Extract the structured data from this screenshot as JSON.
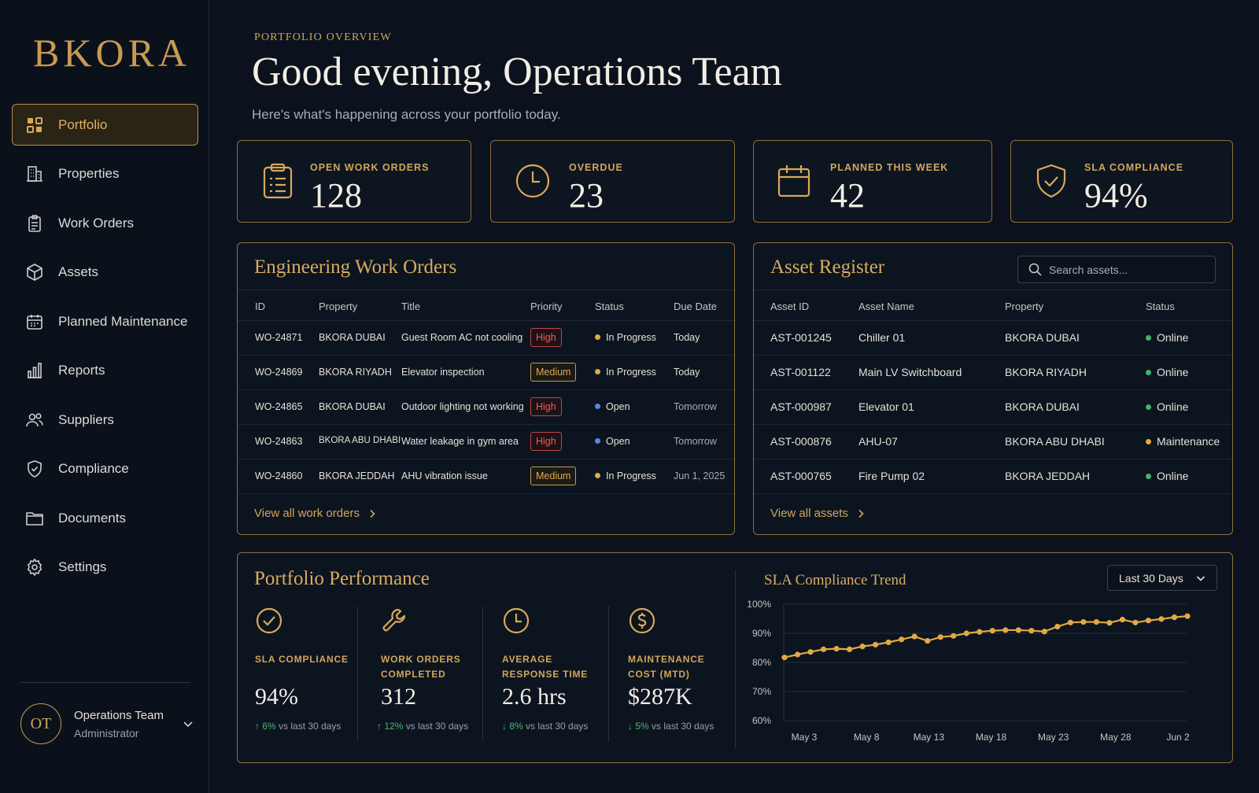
{
  "brand": {
    "logo": "BKORA"
  },
  "sidebar": {
    "items": [
      {
        "label": "Portfolio",
        "icon": "grid-icon",
        "active": true
      },
      {
        "label": "Properties",
        "icon": "building-icon"
      },
      {
        "label": "Work Orders",
        "icon": "clipboard-icon"
      },
      {
        "label": "Assets",
        "icon": "cube-icon"
      },
      {
        "label": "Planned Maintenance",
        "icon": "calendar-icon"
      },
      {
        "label": "Reports",
        "icon": "bar-chart-icon"
      },
      {
        "label": "Suppliers",
        "icon": "users-icon"
      },
      {
        "label": "Compliance",
        "icon": "shield-check-icon"
      },
      {
        "label": "Documents",
        "icon": "folder-icon"
      },
      {
        "label": "Settings",
        "icon": "gear-icon"
      }
    ],
    "user": {
      "initials": "OT",
      "name": "Operations Team",
      "role": "Administrator"
    }
  },
  "header": {
    "eyebrow": "PORTFOLIO OVERVIEW",
    "greeting": "Good evening, Operations Team",
    "subtitle": "Here's what's happening across your portfolio today."
  },
  "stats": [
    {
      "label": "OPEN WORK ORDERS",
      "value": "128",
      "icon": "clipboard-list-icon"
    },
    {
      "label": "OVERDUE",
      "value": "23",
      "icon": "clock-icon"
    },
    {
      "label": "PLANNED THIS WEEK",
      "value": "42",
      "icon": "calendar-icon"
    },
    {
      "label": "SLA COMPLIANCE",
      "value": "94%",
      "icon": "shield-check-icon"
    }
  ],
  "work_orders": {
    "title": "Engineering Work Orders",
    "columns": [
      "ID",
      "Property",
      "Title",
      "Priority",
      "Status",
      "Due Date"
    ],
    "rows": [
      {
        "id": "WO-24871",
        "property": "BKORA DUBAI",
        "title": "Guest Room AC not cooling",
        "priority": "High",
        "status": "In Progress",
        "due": "Today"
      },
      {
        "id": "WO-24869",
        "property": "BKORA RIYADH",
        "title": "Elevator inspection",
        "priority": "Medium",
        "status": "In Progress",
        "due": "Today"
      },
      {
        "id": "WO-24865",
        "property": "BKORA DUBAI",
        "title": "Outdoor lighting not working",
        "priority": "High",
        "status": "Open",
        "due": "Tomorrow"
      },
      {
        "id": "WO-24863",
        "property": "BKORA ABU DHABI",
        "title": "Water leakage in gym area",
        "priority": "High",
        "status": "Open",
        "due": "Tomorrow"
      },
      {
        "id": "WO-24860",
        "property": "BKORA JEDDAH",
        "title": "AHU vibration issue",
        "priority": "Medium",
        "status": "In Progress",
        "due": "Jun 1, 2025"
      }
    ],
    "link": "View all work orders"
  },
  "assets": {
    "title": "Asset Register",
    "search_placeholder": "Search assets...",
    "columns": [
      "Asset ID",
      "Asset Name",
      "Property",
      "Status"
    ],
    "rows": [
      {
        "id": "AST-001245",
        "name": "Chiller 01",
        "property": "BKORA DUBAI",
        "status": "Online"
      },
      {
        "id": "AST-001122",
        "name": "Main LV Switchboard",
        "property": "BKORA RIYADH",
        "status": "Online"
      },
      {
        "id": "AST-000987",
        "name": "Elevator 01",
        "property": "BKORA DUBAI",
        "status": "Online"
      },
      {
        "id": "AST-000876",
        "name": "AHU-07",
        "property": "BKORA ABU DHABI",
        "status": "Maintenance"
      },
      {
        "id": "AST-000765",
        "name": "Fire Pump 02",
        "property": "BKORA JEDDAH",
        "status": "Online"
      }
    ],
    "link": "View all assets"
  },
  "performance": {
    "title": "Portfolio Performance",
    "kpis": [
      {
        "label": "SLA COMPLIANCE",
        "value": "94%",
        "delta": "6%",
        "delta_suffix": "vs last 30 days",
        "direction": "up",
        "icon": "check-circle-icon"
      },
      {
        "label": "WORK ORDERS COMPLETED",
        "value": "312",
        "delta": "12%",
        "delta_suffix": "vs last 30 days",
        "direction": "up",
        "icon": "wrench-icon"
      },
      {
        "label": "AVERAGE RESPONSE TIME",
        "value": "2.6 hrs",
        "delta": "8%",
        "delta_suffix": "vs last 30 days",
        "direction": "down",
        "icon": "clock-icon"
      },
      {
        "label": "MAINTENANCE COST (MTD)",
        "value": "$287K",
        "delta": "5%",
        "delta_suffix": "vs last 30 days",
        "direction": "down",
        "icon": "dollar-icon"
      }
    ]
  },
  "sla_chart": {
    "title": "SLA Compliance Trend",
    "range_label": "Last 30 Days"
  },
  "chart_data": {
    "type": "line",
    "title": "SLA Compliance Trend",
    "ylim": [
      60,
      100
    ],
    "yticks": [
      "100%",
      "90%",
      "80%",
      "70%",
      "60%"
    ],
    "ytick_values": [
      100,
      90,
      80,
      70,
      60
    ],
    "xticks": [
      "May 3",
      "May 8",
      "May 13",
      "May 18",
      "May 23",
      "May 28",
      "Jun 2"
    ],
    "grid": true,
    "series": [
      {
        "values": [
          81.7,
          82.7,
          83.6,
          84.5,
          84.7,
          84.5,
          85.5,
          86.1,
          86.9,
          87.9,
          88.9,
          87.4,
          88.7,
          89.1,
          90.0,
          90.5,
          90.9,
          91.1,
          91.1,
          90.9,
          90.6,
          92.3,
          93.7,
          93.9,
          93.9,
          93.6,
          94.7,
          93.7,
          94.4,
          94.9,
          95.5,
          95.9
        ]
      }
    ],
    "color": "#e1a945"
  }
}
